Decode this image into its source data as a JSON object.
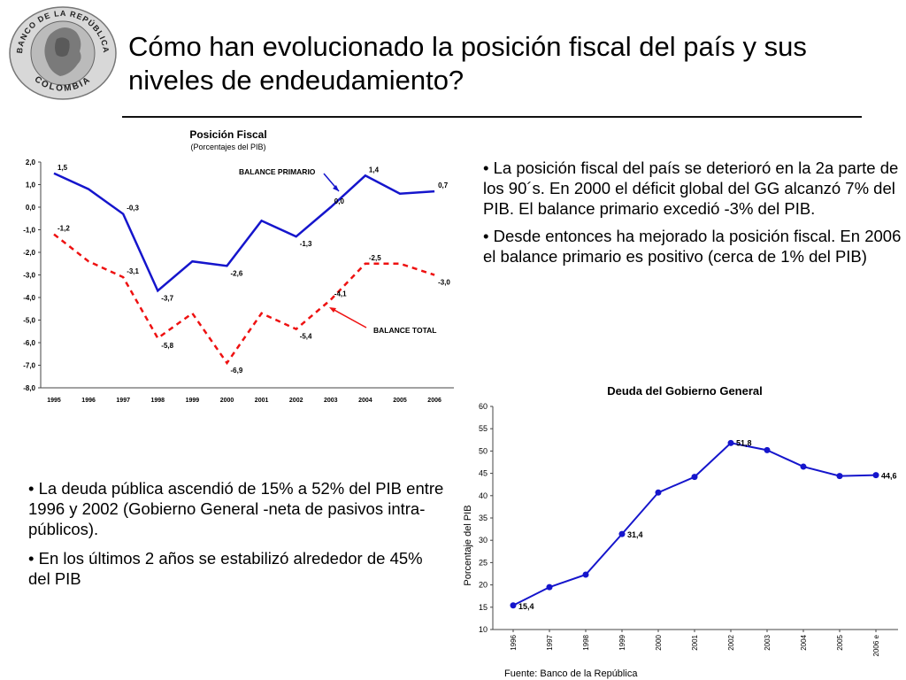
{
  "slide": {
    "title": "Cómo han evolucionado la posición fiscal del país y sus niveles de endeudamiento?",
    "logo": {
      "icon": "central-bank-seal-icon",
      "text_top": "BANCO DE LA REPÚBLICA",
      "text_bottom": "COLOMBIA"
    }
  },
  "right_bullets": [
    "La posición fiscal del país se deterioró en la 2a parte de los 90´s. En 2000 el déficit global del GG alcanzó 7% del PIB. El balance primario excedió -3% del PIB.",
    "Desde entonces ha mejorado la posición fiscal.  En 2006 el balance primario es positivo (cerca de 1% del PIB)"
  ],
  "left_bullets": [
    "La deuda pública ascendió de 15% a 52% del PIB entre 1996 y 2002 (Gobierno General -neta de pasivos intra-públicos).",
    "En los últimos 2 años se estabilizó alrededor de 45% del PIB"
  ],
  "chart_data": [
    {
      "type": "line",
      "title": "Posición Fiscal",
      "subtitle": "(Porcentajes del PIB)",
      "x": [
        "1995",
        "1996",
        "1997",
        "1998",
        "1999",
        "2000",
        "2001",
        "2002",
        "2003",
        "2004",
        "2005",
        "2006"
      ],
      "ylim": [
        -8.0,
        2.0
      ],
      "yticks": [
        "2,0",
        "1,0",
        "0,0",
        "-1,0",
        "-2,0",
        "-3,0",
        "-4,0",
        "-5,0",
        "-6,0",
        "-7,0",
        "-8,0"
      ],
      "grid": false,
      "series": [
        {
          "name": "BALANCE PRIMARIO",
          "color": "#1515cc",
          "style": "solid",
          "values": [
            1.5,
            0.8,
            -0.3,
            -3.7,
            -2.4,
            -2.6,
            -0.6,
            -1.3,
            0.0,
            1.4,
            0.6,
            0.7
          ],
          "labels": [
            "1,5",
            "",
            "-0,3",
            "-3,7",
            "",
            "-2,6",
            "",
            "-1,3",
            "0,0",
            "1,4",
            "",
            "0,7"
          ]
        },
        {
          "name": "BALANCE TOTAL",
          "color": "#ee1111",
          "style": "dashed",
          "values": [
            -1.2,
            -2.4,
            -3.1,
            -5.8,
            -4.7,
            -6.9,
            -4.7,
            -5.4,
            -4.1,
            -2.5,
            -2.5,
            -3.0
          ],
          "labels": [
            "-1,2",
            "",
            "-3,1",
            "-5,8",
            "",
            "-6,9",
            "",
            "-5,4",
            "-4,1",
            "-2,5",
            "",
            "-3,0"
          ]
        }
      ],
      "annotations": [
        {
          "text": "BALANCE PRIMARIO",
          "arrow_color": "#1515cc"
        },
        {
          "text": "BALANCE TOTAL",
          "arrow_color": "#ee1111"
        }
      ]
    },
    {
      "type": "line",
      "title": "Deuda del Gobierno General",
      "ylabel": "Porcentaje del PIB",
      "x": [
        "1996",
        "1997",
        "1998",
        "1999",
        "2000",
        "2001",
        "2002",
        "2003",
        "2004",
        "2005",
        "2006 e"
      ],
      "ylim": [
        10,
        60
      ],
      "yticks": [
        "60",
        "55",
        "50",
        "45",
        "40",
        "35",
        "30",
        "25",
        "20",
        "15",
        "10"
      ],
      "grid": false,
      "series": [
        {
          "name": "Deuda",
          "color": "#1515cc",
          "values": [
            15.4,
            19.5,
            22.3,
            31.4,
            40.7,
            44.2,
            51.8,
            50.2,
            46.5,
            44.4,
            44.6
          ],
          "labels": [
            "15,4",
            "",
            "",
            "31,4",
            "",
            "",
            "51,8",
            "",
            "",
            "",
            "44,6"
          ]
        }
      ],
      "source": "Fuente: Banco de la República"
    }
  ]
}
